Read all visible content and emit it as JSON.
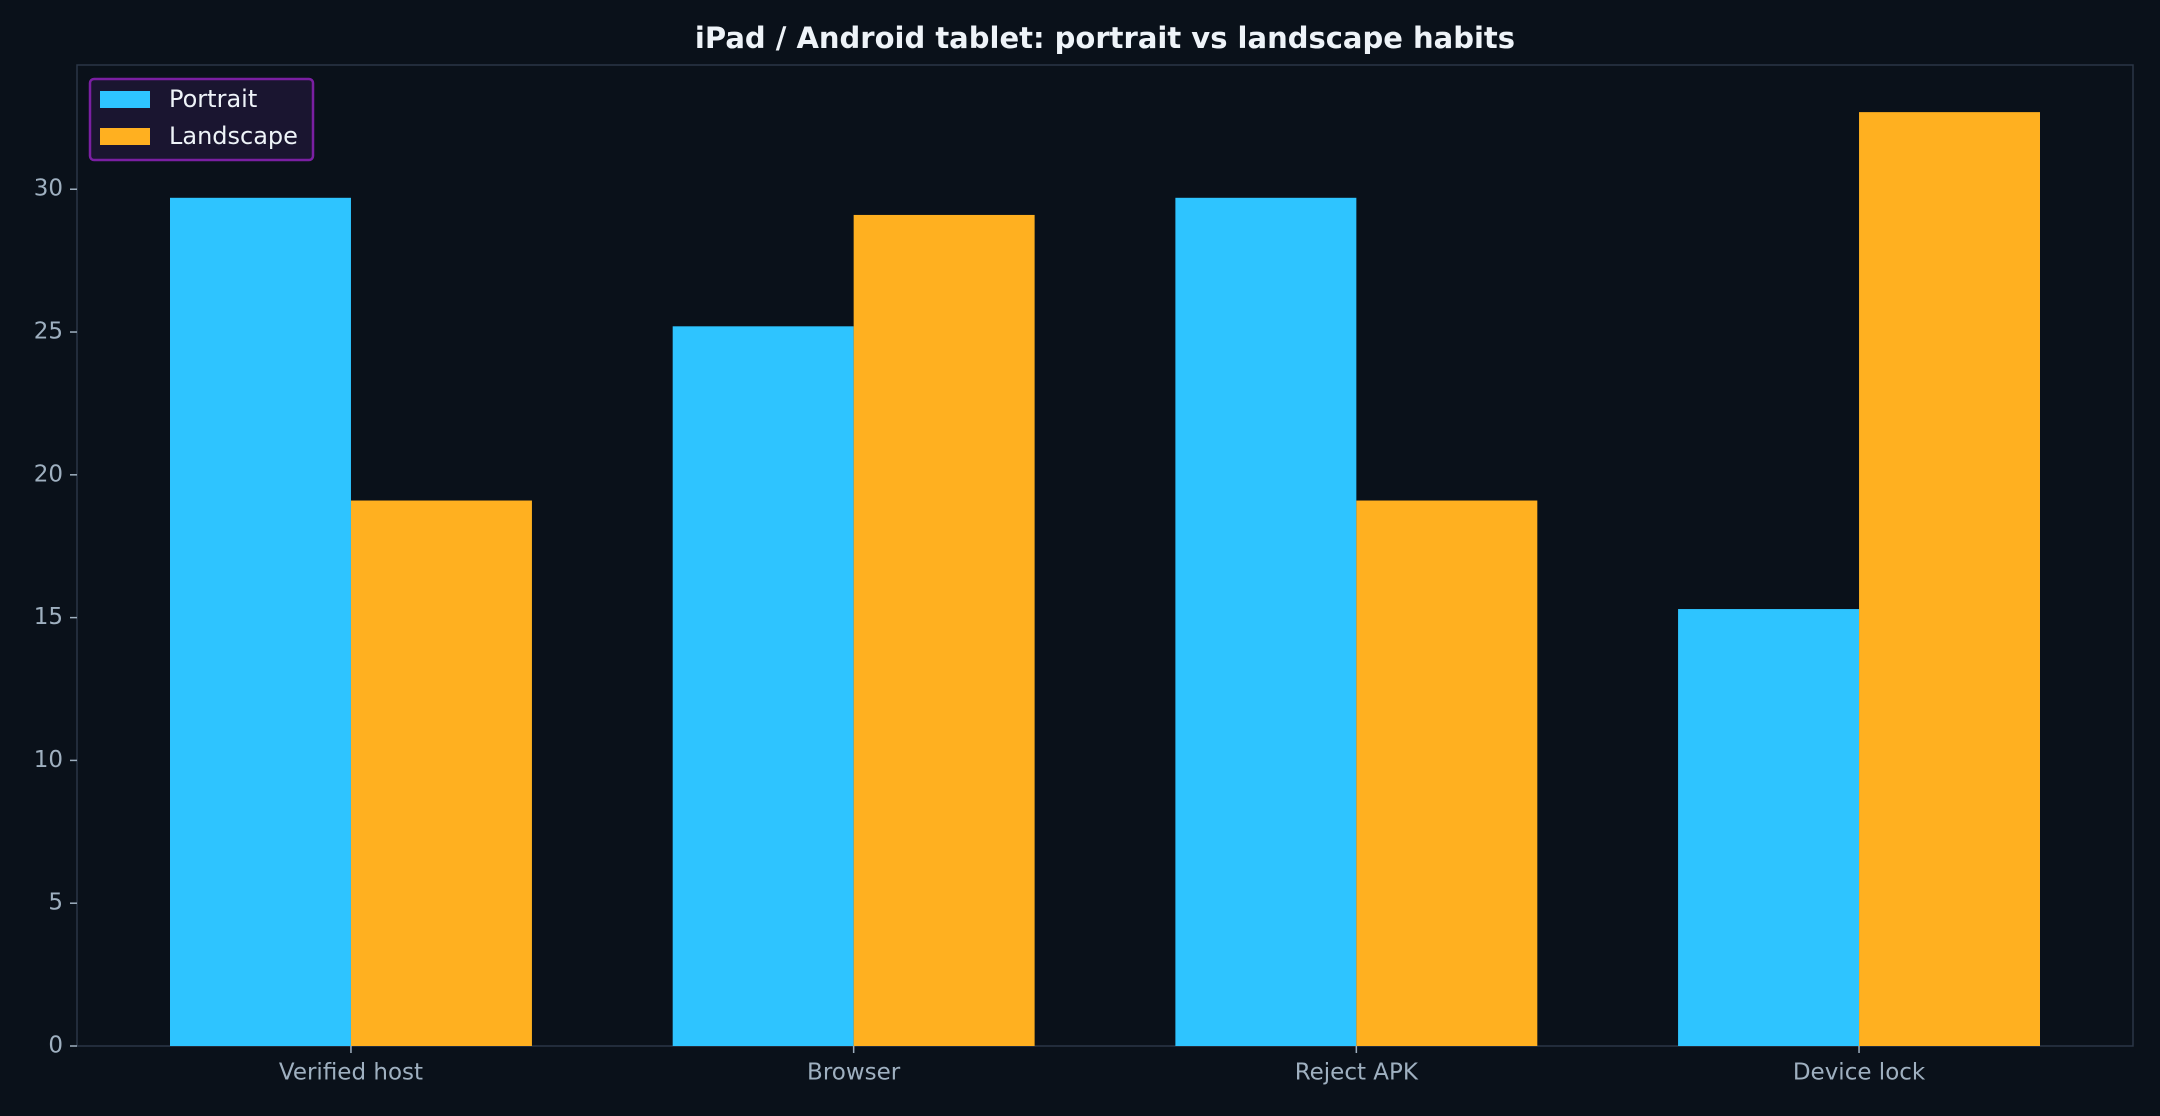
{
  "chart_data": {
    "type": "bar",
    "title": "iPad / Android tablet: portrait vs landscape habits",
    "categories": [
      "Verified host",
      "Browser",
      "Reject APK",
      "Device lock"
    ],
    "series": [
      {
        "name": "Portrait",
        "color": "#2ec4ff",
        "values": [
          29.7,
          25.2,
          29.7,
          15.3
        ]
      },
      {
        "name": "Landscape",
        "color": "#ffb020",
        "values": [
          19.1,
          29.1,
          19.1,
          32.7
        ]
      }
    ],
    "ylim": [
      0,
      34.35
    ],
    "yticks": [
      0,
      5,
      10,
      15,
      20,
      25,
      30
    ],
    "legend": "upper left"
  }
}
